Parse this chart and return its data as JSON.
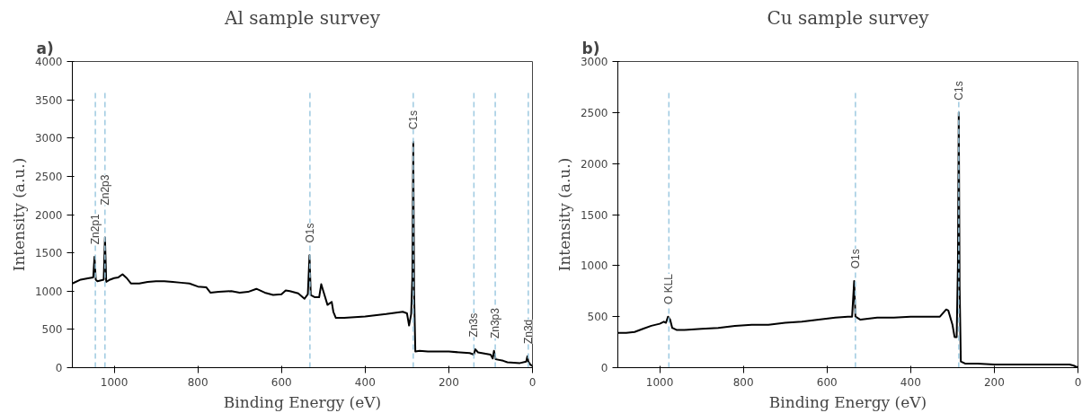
{
  "chart_data": [
    {
      "type": "line",
      "title": "Al sample survey",
      "xlabel": "Binding Energy (eV)",
      "ylabel": "Intensity (a.u.)",
      "annotations": [
        "a)"
      ],
      "xlim": [
        1100,
        0
      ],
      "xticks": [
        1000,
        800,
        600,
        400,
        200,
        0
      ],
      "ylim": [
        0,
        4000
      ],
      "yticks": [
        0,
        500,
        1000,
        1500,
        2000,
        2500,
        3000,
        3500,
        4000
      ],
      "grid": false,
      "line_style": "solid",
      "series": [
        {
          "color": "#000000",
          "x": [
            1100,
            1080,
            1060,
            1050,
            1047,
            1044,
            1040,
            1025,
            1022,
            1019,
            1010,
            1000,
            990,
            980,
            970,
            960,
            940,
            920,
            900,
            880,
            860,
            840,
            820,
            800,
            780,
            770,
            750,
            720,
            700,
            680,
            660,
            640,
            620,
            600,
            590,
            580,
            560,
            545,
            537,
            533,
            530,
            520,
            510,
            505,
            500,
            490,
            480,
            476,
            470,
            450,
            400,
            350,
            310,
            300,
            295,
            290,
            287,
            285,
            283,
            280,
            270,
            250,
            200,
            150,
            140,
            137,
            130,
            100,
            95,
            92,
            88,
            70,
            60,
            30,
            15,
            12,
            10,
            5,
            0
          ],
          "values": [
            1100,
            1150,
            1170,
            1180,
            1450,
            1150,
            1130,
            1150,
            1700,
            1120,
            1150,
            1170,
            1180,
            1220,
            1170,
            1100,
            1100,
            1120,
            1130,
            1130,
            1120,
            1110,
            1100,
            1060,
            1050,
            980,
            990,
            1000,
            980,
            990,
            1030,
            980,
            950,
            960,
            1010,
            1000,
            970,
            900,
            960,
            1470,
            950,
            920,
            920,
            1090,
            1000,
            820,
            860,
            730,
            650,
            650,
            670,
            700,
            730,
            710,
            550,
            700,
            1200,
            2950,
            1000,
            210,
            220,
            210,
            210,
            190,
            170,
            240,
            200,
            170,
            120,
            220,
            110,
            90,
            70,
            60,
            80,
            150,
            80,
            40,
            20
          ]
        }
      ],
      "ref_lines": [
        {
          "axis": "x",
          "value": 1045,
          "label": "Zn2p1",
          "color": "#9ecae1",
          "line_style": "dashed"
        },
        {
          "axis": "x",
          "value": 1022,
          "label": "Zn2p3",
          "color": "#9ecae1",
          "line_style": "dashed"
        },
        {
          "axis": "x",
          "value": 532,
          "label": "O1s",
          "color": "#9ecae1",
          "line_style": "dashed"
        },
        {
          "axis": "x",
          "value": 285,
          "label": "C1s",
          "color": "#9ecae1",
          "line_style": "dashed"
        },
        {
          "axis": "x",
          "value": 140,
          "label": "Zn3s",
          "color": "#9ecae1",
          "line_style": "dashed"
        },
        {
          "axis": "x",
          "value": 89,
          "label": "Zn3p3",
          "color": "#9ecae1",
          "line_style": "dashed"
        },
        {
          "axis": "x",
          "value": 10,
          "label": "Zn3d",
          "color": "#9ecae1",
          "line_style": "dashed"
        }
      ]
    },
    {
      "type": "line",
      "title": "Cu sample survey",
      "xlabel": "Binding Energy (eV)",
      "ylabel": "Intensity (a.u.)",
      "annotations": [
        "b)"
      ],
      "xlim": [
        1100,
        0
      ],
      "xticks": [
        1000,
        800,
        600,
        400,
        200,
        0
      ],
      "ylim": [
        0,
        3000
      ],
      "yticks": [
        0,
        500,
        1000,
        1500,
        2000,
        2500,
        3000
      ],
      "grid": false,
      "line_style": "solid",
      "series": [
        {
          "color": "#000000",
          "x": [
            1100,
            1080,
            1060,
            1040,
            1020,
            1000,
            990,
            985,
            980,
            975,
            970,
            960,
            940,
            900,
            860,
            820,
            780,
            740,
            700,
            660,
            620,
            580,
            550,
            540,
            535,
            532,
            520,
            480,
            440,
            400,
            360,
            330,
            315,
            310,
            300,
            295,
            290,
            287,
            285,
            283,
            280,
            270,
            240,
            200,
            100,
            20,
            10,
            0
          ],
          "values": [
            340,
            340,
            350,
            380,
            410,
            430,
            450,
            440,
            500,
            470,
            390,
            370,
            370,
            380,
            390,
            410,
            420,
            420,
            440,
            450,
            470,
            490,
            500,
            500,
            850,
            500,
            470,
            490,
            490,
            500,
            500,
            500,
            570,
            560,
            420,
            300,
            300,
            1000,
            2500,
            800,
            60,
            40,
            40,
            30,
            30,
            30,
            20,
            0
          ]
        }
      ],
      "ref_lines": [
        {
          "axis": "x",
          "value": 978,
          "label": "O KLL",
          "color": "#9ecae1",
          "line_style": "dashed"
        },
        {
          "axis": "x",
          "value": 532,
          "label": "O1s",
          "color": "#9ecae1",
          "line_style": "dashed"
        },
        {
          "axis": "x",
          "value": 285,
          "label": "C1s",
          "color": "#9ecae1",
          "line_style": "dashed"
        }
      ]
    }
  ]
}
